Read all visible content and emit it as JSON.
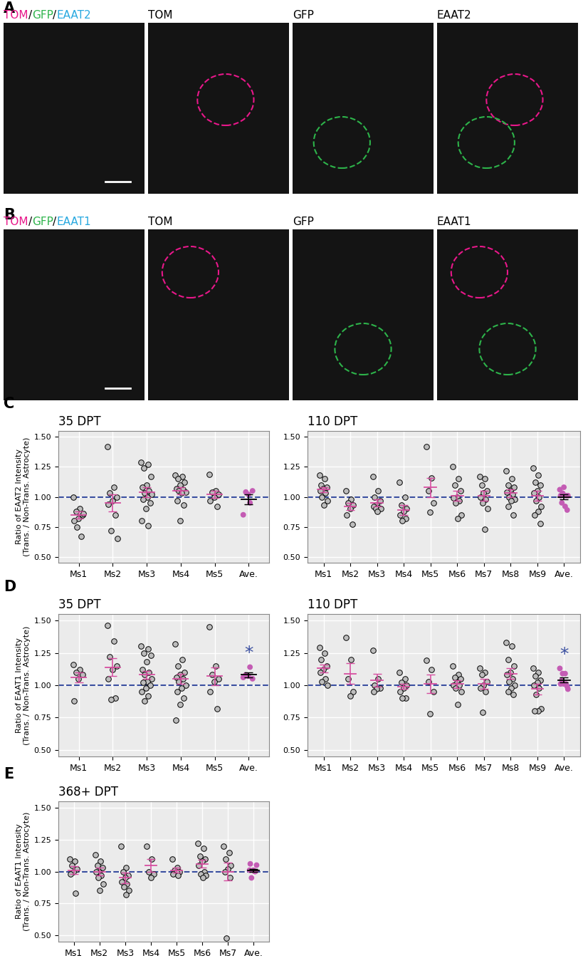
{
  "image_panels": [
    {
      "label": "A",
      "composite_parts": [
        {
          "text": "TOM",
          "color": "#e8178a"
        },
        {
          "text": "/",
          "color": "#000000"
        },
        {
          "text": "GFP",
          "color": "#2db34a"
        },
        {
          "text": "/",
          "color": "#000000"
        },
        {
          "text": "EAAT2",
          "color": "#29a9e0"
        }
      ],
      "channels": [
        "TOM",
        "GFP",
        "EAAT2"
      ]
    },
    {
      "label": "B",
      "composite_parts": [
        {
          "text": "TOM",
          "color": "#e8178a"
        },
        {
          "text": "/",
          "color": "#000000"
        },
        {
          "text": "GFP",
          "color": "#2db34a"
        },
        {
          "text": "/",
          "color": "#000000"
        },
        {
          "text": "EAAT1",
          "color": "#29a9e0"
        }
      ],
      "channels": [
        "TOM",
        "GFP",
        "EAAT1"
      ]
    }
  ],
  "chart_data": [
    {
      "type": "scatter",
      "panel_label": "C",
      "title": "35 DPT",
      "y_label": "Ratio of EAAT2 Intensity\n(Trans. / Non-Trans. Astrocyte)",
      "categories": [
        "Ms1",
        "Ms2",
        "Ms3",
        "Ms4",
        "Ms5",
        "Ave."
      ],
      "colors": [
        "#bdbdbd",
        "#bdbdbd",
        "#bdbdbd",
        "#bdbdbd",
        "#bdbdbd",
        "#c45cb4"
      ],
      "values": [
        [
          1.0,
          0.9,
          0.88,
          0.85,
          0.82,
          0.8,
          0.67,
          0.75,
          0.86
        ],
        [
          1.42,
          1.08,
          1.03,
          1.0,
          0.97,
          0.94,
          0.85,
          0.72,
          0.65
        ],
        [
          1.29,
          1.27,
          1.24,
          1.17,
          1.1,
          1.08,
          1.05,
          1.03,
          1.02,
          1.0,
          0.98,
          0.95,
          0.9,
          0.8,
          0.76
        ],
        [
          1.18,
          1.17,
          1.15,
          1.12,
          1.1,
          1.07,
          1.06,
          1.05,
          1.04,
          1.03,
          0.97,
          0.93,
          0.8
        ],
        [
          1.19,
          1.05,
          1.04,
          1.02,
          1.0,
          0.97,
          0.92
        ],
        [
          0.85,
          0.95,
          1.04,
          1.05,
          1.02
        ]
      ],
      "means": [
        0.85,
        0.95,
        1.04,
        1.05,
        1.02,
        0.98
      ],
      "sems": [
        0.03,
        0.07,
        0.04,
        0.03,
        0.03,
        0.04
      ],
      "reference_value": 1.0,
      "ylim": [
        0.45,
        1.55
      ],
      "yticks": [
        {
          "value": 0.5,
          "label": "0.50"
        },
        {
          "value": 0.75,
          "label": "0.75"
        },
        {
          "value": 1.0,
          "label": "1.00"
        },
        {
          "value": 1.25,
          "label": "1.25"
        },
        {
          "value": 1.5,
          "label": "1.50"
        }
      ],
      "grid": true
    },
    {
      "type": "scatter",
      "title": "110 DPT",
      "categories": [
        "Ms1",
        "Ms2",
        "Ms3",
        "Ms4",
        "Ms5",
        "Ms6",
        "Ms7",
        "Ms8",
        "Ms9",
        "Ave."
      ],
      "colors": [
        "#bdbdbd",
        "#bdbdbd",
        "#bdbdbd",
        "#bdbdbd",
        "#bdbdbd",
        "#bdbdbd",
        "#bdbdbd",
        "#bdbdbd",
        "#bdbdbd",
        "#c45cb4"
      ],
      "values": [
        [
          1.18,
          1.15,
          1.1,
          1.08,
          1.07,
          1.05,
          1.03,
          1.0,
          0.97,
          0.93
        ],
        [
          1.05,
          0.98,
          0.95,
          0.93,
          0.9,
          0.85,
          0.77
        ],
        [
          1.17,
          1.05,
          1.0,
          0.97,
          0.93,
          0.92,
          0.91,
          0.9,
          0.9,
          0.88
        ],
        [
          1.12,
          1.0,
          0.93,
          0.9,
          0.88,
          0.85,
          0.82,
          0.8
        ],
        [
          1.42,
          1.16,
          1.05,
          0.95,
          0.87
        ],
        [
          1.25,
          1.15,
          1.1,
          1.05,
          1.0,
          0.99,
          0.97,
          0.95,
          0.85,
          0.82
        ],
        [
          1.17,
          1.15,
          1.1,
          1.05,
          1.03,
          1.0,
          0.98,
          0.95,
          0.9,
          0.73
        ],
        [
          1.22,
          1.15,
          1.1,
          1.08,
          1.05,
          1.04,
          1.02,
          1.0,
          0.98,
          0.97,
          0.92,
          0.85
        ],
        [
          1.24,
          1.18,
          1.12,
          1.1,
          1.05,
          1.03,
          1.0,
          0.97,
          0.92,
          0.88,
          0.85,
          0.78
        ],
        [
          1.06,
          0.92,
          0.95,
          0.89,
          1.08,
          1.01,
          1.01,
          1.03,
          1.01
        ]
      ],
      "means": [
        1.06,
        0.92,
        0.95,
        0.89,
        1.08,
        1.01,
        1.01,
        1.03,
        1.01,
        1.0
      ],
      "sems": [
        0.02,
        0.03,
        0.03,
        0.04,
        0.08,
        0.04,
        0.04,
        0.03,
        0.04,
        0.02
      ],
      "reference_value": 1.0,
      "ylim": [
        0.45,
        1.55
      ],
      "yticks": [
        {
          "value": 0.5,
          "label": "0.50"
        },
        {
          "value": 0.75,
          "label": "0.75"
        },
        {
          "value": 1.0,
          "label": "1.00"
        },
        {
          "value": 1.25,
          "label": "1.25"
        },
        {
          "value": 1.5,
          "label": "1.50"
        }
      ],
      "grid": true
    },
    {
      "type": "scatter",
      "panel_label": "D",
      "title": "35 DPT",
      "y_label": "Ratio of EAAT1 Intensity\n(Trans. / Non-Trans. Astrocyte)",
      "categories": [
        "Ms1",
        "Ms2",
        "Ms3",
        "Ms4",
        "Ms5",
        "Ave."
      ],
      "colors": [
        "#bdbdbd",
        "#bdbdbd",
        "#bdbdbd",
        "#bdbdbd",
        "#bdbdbd",
        "#c45cb4"
      ],
      "values": [
        [
          1.16,
          1.12,
          1.1,
          1.08,
          1.05,
          0.88
        ],
        [
          1.46,
          1.34,
          1.22,
          1.15,
          1.12,
          1.05,
          0.9,
          0.89
        ],
        [
          1.3,
          1.28,
          1.25,
          1.23,
          1.18,
          1.12,
          1.1,
          1.08,
          1.05,
          1.03,
          1.02,
          1.0,
          0.98,
          0.95,
          0.92,
          0.88
        ],
        [
          1.32,
          1.2,
          1.15,
          1.1,
          1.08,
          1.06,
          1.05,
          1.03,
          1.0,
          0.98,
          0.95,
          0.9,
          0.85,
          0.73
        ],
        [
          1.45,
          1.15,
          1.08,
          1.05,
          1.03,
          0.95,
          0.82
        ],
        [
          1.06,
          1.14,
          1.08,
          1.05,
          1.07
        ]
      ],
      "means": [
        1.06,
        1.14,
        1.08,
        1.05,
        1.07,
        1.08
      ],
      "sems": [
        0.04,
        0.07,
        0.03,
        0.04,
        0.07,
        0.02
      ],
      "reference_value": 1.0,
      "annotations": [
        {
          "text": "*",
          "category": "Ave."
        }
      ],
      "ylim": [
        0.45,
        1.55
      ],
      "yticks": [
        {
          "value": 0.5,
          "label": "0.50"
        },
        {
          "value": 0.75,
          "label": "0.75"
        },
        {
          "value": 1.0,
          "label": "1.00"
        },
        {
          "value": 1.25,
          "label": "1.25"
        },
        {
          "value": 1.5,
          "label": "1.50"
        }
      ],
      "grid": true
    },
    {
      "type": "scatter",
      "title": "110 DPT",
      "categories": [
        "Ms1",
        "Ms2",
        "Ms3",
        "Ms4",
        "Ms5",
        "Ms6",
        "Ms7",
        "Ms8",
        "Ms9",
        "Ave."
      ],
      "colors": [
        "#bdbdbd",
        "#bdbdbd",
        "#bdbdbd",
        "#bdbdbd",
        "#bdbdbd",
        "#bdbdbd",
        "#bdbdbd",
        "#bdbdbd",
        "#bdbdbd",
        "#c45cb4"
      ],
      "values": [
        [
          1.29,
          1.25,
          1.2,
          1.15,
          1.12,
          1.1,
          1.05,
          1.03,
          1.0
        ],
        [
          1.37,
          1.2,
          1.05,
          0.95,
          0.92
        ],
        [
          1.27,
          1.05,
          1.0,
          0.98,
          0.97,
          0.95
        ],
        [
          1.1,
          1.05,
          1.02,
          1.0,
          0.98,
          0.95,
          0.9,
          0.9
        ],
        [
          1.19,
          1.12,
          1.03,
          0.95,
          0.78
        ],
        [
          1.15,
          1.08,
          1.06,
          1.05,
          1.02,
          1.0,
          1.0,
          0.98,
          0.95,
          0.85
        ],
        [
          1.13,
          1.1,
          1.08,
          1.03,
          1.0,
          0.98,
          0.95,
          0.79
        ],
        [
          1.33,
          1.3,
          1.2,
          1.15,
          1.1,
          1.08,
          1.05,
          1.03,
          1.0,
          0.98,
          0.95,
          0.93
        ],
        [
          1.13,
          1.1,
          1.07,
          1.04,
          1.02,
          1.0,
          0.98,
          0.93,
          0.82,
          0.8,
          0.8
        ],
        [
          1.13,
          1.09,
          1.04,
          0.99,
          1.01,
          1.01,
          1.01,
          1.09,
          0.97
        ]
      ],
      "means": [
        1.13,
        1.09,
        1.04,
        0.99,
        1.01,
        1.01,
        1.01,
        1.09,
        0.97,
        1.04
      ],
      "sems": [
        0.03,
        0.08,
        0.05,
        0.02,
        0.07,
        0.03,
        0.04,
        0.04,
        0.04,
        0.02
      ],
      "reference_value": 1.0,
      "annotations": [
        {
          "text": "*",
          "category": "Ave."
        }
      ],
      "ylim": [
        0.45,
        1.55
      ],
      "yticks": [
        {
          "value": 0.5,
          "label": "0.50"
        },
        {
          "value": 0.75,
          "label": "0.75"
        },
        {
          "value": 1.0,
          "label": "1.00"
        },
        {
          "value": 1.25,
          "label": "1.25"
        },
        {
          "value": 1.5,
          "label": "1.50"
        }
      ],
      "grid": true
    },
    {
      "type": "scatter",
      "panel_label": "E",
      "title": "368+ DPT",
      "y_label": "Ratio of EAAT1 Intensity\n(Trans. / Non-Trans. Astrocyte)",
      "categories": [
        "Ms1",
        "Ms2",
        "Ms3",
        "Ms4",
        "Ms5",
        "Ms6",
        "Ms7",
        "Ave."
      ],
      "colors": [
        "#bdbdbd",
        "#bdbdbd",
        "#bdbdbd",
        "#bdbdbd",
        "#bdbdbd",
        "#bdbdbd",
        "#bdbdbd",
        "#c45cb4"
      ],
      "values": [
        [
          1.1,
          1.08,
          1.05,
          1.02,
          1.0,
          0.98,
          0.83
        ],
        [
          1.13,
          1.08,
          1.05,
          1.03,
          1.0,
          1.0,
          0.97,
          0.95,
          0.9,
          0.85
        ],
        [
          1.2,
          1.03,
          1.0,
          0.97,
          0.95,
          0.92,
          0.9,
          0.88,
          0.85,
          0.82
        ],
        [
          1.2,
          1.1,
          1.0,
          0.98,
          0.95
        ],
        [
          1.1,
          1.03,
          1.01,
          1.0,
          1.0,
          0.98,
          0.97
        ],
        [
          1.22,
          1.18,
          1.12,
          1.1,
          1.08,
          1.05,
          1.0,
          0.98,
          0.97,
          0.95
        ],
        [
          1.2,
          1.15,
          1.1,
          1.05,
          1.02,
          1.0,
          0.95,
          0.48
        ],
        [
          1.01,
          1.0,
          0.95,
          1.05,
          1.01,
          1.06,
          1.0
        ]
      ],
      "means": [
        1.01,
        1.0,
        0.95,
        1.05,
        1.01,
        1.06,
        1.0,
        1.01
      ],
      "sems": [
        0.03,
        0.03,
        0.04,
        0.05,
        0.02,
        0.03,
        0.07,
        0.01
      ],
      "reference_value": 1.0,
      "ylim": [
        0.45,
        1.55
      ],
      "yticks": [
        {
          "value": 0.5,
          "label": "0.50"
        },
        {
          "value": 0.75,
          "label": "0.75"
        },
        {
          "value": 1.0,
          "label": "1.00"
        },
        {
          "value": 1.25,
          "label": "1.25"
        },
        {
          "value": 1.5,
          "label": "1.50"
        }
      ],
      "grid": true
    }
  ]
}
